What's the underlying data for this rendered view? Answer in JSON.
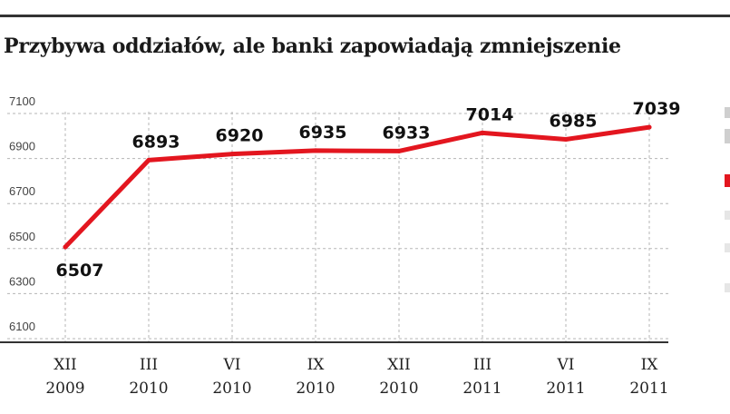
{
  "header": {
    "title": "Przybywa oddziałów, ale banki zapowiadają zmniejszenie"
  },
  "colors": {
    "line": "#e3161f",
    "grid": "#b5b5b5",
    "text": "#1a1a1a"
  },
  "chart_data": {
    "type": "line",
    "title": "Przybywa oddziałów, ale banki zapowiadają zmniejszenie",
    "xlabel": "",
    "ylabel": "",
    "categories": [
      "XII 2009",
      "III 2010",
      "VI 2010",
      "IX 2010",
      "XII 2010",
      "III 2011",
      "VI 2011",
      "IX 2011"
    ],
    "x_ticks": [
      {
        "line1": "XII",
        "line2": "2009"
      },
      {
        "line1": "III",
        "line2": "2010"
      },
      {
        "line1": "VI",
        "line2": "2010"
      },
      {
        "line1": "IX",
        "line2": "2010"
      },
      {
        "line1": "XII",
        "line2": "2010"
      },
      {
        "line1": "III",
        "line2": "2011"
      },
      {
        "line1": "VI",
        "line2": "2011"
      },
      {
        "line1": "IX",
        "line2": "2011"
      }
    ],
    "series": [
      {
        "values": [
          6507,
          6893,
          6920,
          6935,
          6933,
          7014,
          6985,
          7039
        ]
      }
    ],
    "data_labels": [
      "6507",
      "6893",
      "6920",
      "6935",
      "6933",
      "7014",
      "6985",
      "7039"
    ],
    "y_ticks": [
      7100,
      6900,
      6700,
      6500,
      6300,
      6100
    ],
    "y_tick_labels": [
      "7100",
      "6900",
      "6700",
      "6500",
      "6300",
      "6100"
    ],
    "ylim": [
      6100,
      7100
    ],
    "grid": true
  }
}
